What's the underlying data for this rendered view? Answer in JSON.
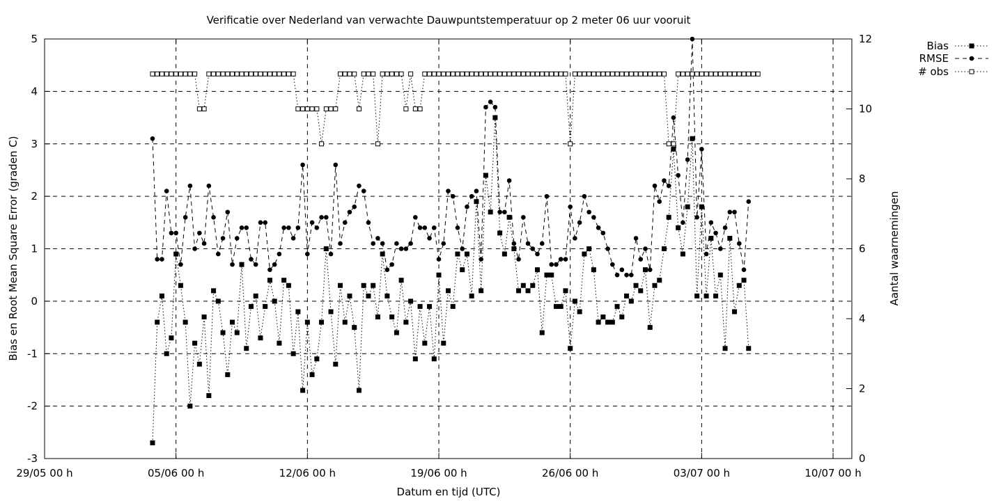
{
  "chart_data": {
    "type": "line",
    "title": "Verificatie over Nederland van verwachte Dauwpuntstemperatuur op 2 meter 06 uur vooruit",
    "xlabel": "Datum en tijd (UTC)",
    "ylabel": "Bias en Root Mean Square Error (graden C)",
    "y2label": "Aantal waarnemingen",
    "grid": true,
    "legend_position": "top-right",
    "xlim_hours": [
      0,
      1032
    ],
    "ylim": [
      -3,
      5
    ],
    "y2lim": [
      0,
      12
    ],
    "x_ticks": [
      {
        "hour": 0,
        "label": "29/05 00 h"
      },
      {
        "hour": 168,
        "label": "05/06 00 h"
      },
      {
        "hour": 336,
        "label": "12/06 00 h"
      },
      {
        "hour": 504,
        "label": "19/06 00 h"
      },
      {
        "hour": 672,
        "label": "26/06 00 h"
      },
      {
        "hour": 840,
        "label": "03/07 00 h"
      },
      {
        "hour": 1008,
        "label": "10/07 00 h"
      }
    ],
    "y_ticks": [
      "-3",
      "-2",
      "-1",
      "0",
      "1",
      "2",
      "3",
      "4",
      "5"
    ],
    "y2_ticks": [
      "0",
      "2",
      "4",
      "6",
      "8",
      "10",
      "12"
    ],
    "x_hours": [
      138,
      144,
      150,
      156,
      162,
      168,
      174,
      180,
      186,
      192,
      198,
      204,
      210,
      216,
      222,
      228,
      234,
      240,
      246,
      252,
      258,
      264,
      270,
      276,
      282,
      288,
      294,
      300,
      306,
      312,
      318,
      324,
      330,
      336,
      342,
      348,
      354,
      360,
      366,
      372,
      378,
      384,
      390,
      396,
      402,
      408,
      414,
      420,
      426,
      432,
      438,
      444,
      450,
      456,
      462,
      468,
      474,
      480,
      486,
      492,
      498,
      504,
      510,
      516,
      522,
      528,
      534,
      540,
      546,
      552,
      558,
      564,
      570,
      576,
      582,
      588,
      594,
      600,
      606,
      612,
      618,
      624,
      630,
      636,
      642,
      648,
      654,
      660,
      666,
      672,
      678,
      684,
      690,
      696,
      702,
      708,
      714,
      720,
      726,
      732,
      738,
      744,
      750,
      756,
      762,
      768,
      774,
      780,
      786,
      792,
      798,
      804,
      810,
      816,
      822,
      828,
      834,
      840,
      846,
      852,
      858,
      864,
      870,
      876,
      882,
      888,
      894,
      900,
      906,
      912,
      918,
      924
    ],
    "series": [
      {
        "name": "Bias",
        "values": [
          -2.7,
          -0.4,
          0.1,
          -1.0,
          -0.7,
          0.9,
          0.3,
          -0.4,
          -2.0,
          -0.8,
          -1.2,
          -0.3,
          -1.8,
          0.2,
          0.0,
          -0.6,
          -1.4,
          -0.4,
          -0.6,
          0.7,
          -0.9,
          -0.1,
          0.1,
          -0.7,
          -0.1,
          0.4,
          0.0,
          -0.8,
          0.4,
          0.3,
          -1.0,
          -0.2,
          -1.7,
          -0.4,
          -1.4,
          -1.1,
          -0.4,
          1.0,
          -0.2,
          -1.2,
          0.3,
          -0.4,
          0.1,
          -0.5,
          -1.7,
          0.3,
          0.1,
          0.3,
          -0.3,
          0.9,
          0.1,
          -0.3,
          -0.6,
          0.4,
          -0.4,
          0.0,
          -1.1,
          -0.1,
          -0.8,
          -0.1,
          -1.1,
          0.5,
          -0.8,
          0.2,
          -0.1,
          0.9,
          0.6,
          0.9,
          0.1,
          1.9,
          0.2,
          2.4,
          1.7,
          3.5,
          1.3,
          0.9,
          1.6,
          1.0,
          0.2,
          0.3,
          0.2,
          0.3,
          0.6,
          -0.6,
          0.5,
          0.5,
          -0.1,
          -0.1,
          0.2,
          -0.9,
          0.0,
          -0.2,
          0.9,
          1.0,
          0.6,
          -0.4,
          -0.3,
          -0.4,
          -0.4,
          -0.1,
          -0.3,
          0.1,
          0.0,
          0.3,
          0.2,
          0.6,
          -0.5,
          0.3,
          0.4,
          1.0,
          1.6,
          2.9,
          1.4,
          0.9,
          1.8,
          3.1,
          0.1,
          1.8,
          0.1,
          1.2,
          0.1,
          0.5,
          -0.9,
          1.2,
          -0.2,
          0.3,
          0.4,
          -0.9
        ]
      },
      {
        "name": "RMSE",
        "values": [
          3.1,
          0.8,
          0.8,
          2.1,
          1.3,
          1.3,
          0.7,
          1.6,
          2.2,
          1.0,
          1.3,
          1.1,
          2.2,
          1.6,
          0.9,
          1.2,
          1.7,
          0.7,
          1.2,
          1.4,
          1.4,
          0.8,
          0.7,
          1.5,
          1.5,
          0.6,
          0.7,
          0.9,
          1.4,
          1.4,
          1.2,
          1.4,
          2.6,
          0.9,
          1.5,
          1.4,
          1.6,
          1.6,
          0.9,
          2.6,
          1.1,
          1.5,
          1.7,
          1.8,
          2.2,
          2.1,
          1.5,
          1.1,
          1.2,
          1.1,
          0.6,
          0.7,
          1.1,
          1.0,
          1.0,
          1.1,
          1.6,
          1.4,
          1.4,
          1.2,
          1.4,
          0.8,
          1.1,
          2.1,
          2.0,
          1.4,
          1.0,
          1.8,
          2.0,
          2.1,
          0.8,
          3.7,
          3.8,
          3.7,
          1.7,
          1.7,
          2.3,
          1.1,
          0.8,
          1.6,
          1.1,
          1.0,
          0.9,
          1.1,
          2.0,
          0.7,
          0.7,
          0.8,
          0.8,
          1.8,
          1.2,
          1.5,
          2.0,
          1.7,
          1.6,
          1.4,
          1.3,
          1.0,
          0.7,
          0.5,
          0.6,
          0.5,
          0.5,
          1.2,
          0.8,
          1.0,
          0.6,
          2.2,
          1.9,
          2.3,
          2.2,
          3.5,
          2.4,
          1.5,
          2.7,
          5.0,
          1.6,
          2.9,
          0.9,
          1.5,
          1.3,
          1.0,
          1.4,
          1.7,
          1.7,
          1.1,
          0.6,
          1.9
        ]
      },
      {
        "name": "# obs",
        "values": [
          11,
          11,
          11,
          11,
          11,
          11,
          11,
          11,
          11,
          11,
          10,
          10,
          11,
          11,
          11,
          11,
          11,
          11,
          11,
          11,
          11,
          11,
          11,
          11,
          11,
          11,
          11,
          11,
          11,
          11,
          11,
          10,
          10,
          10,
          10,
          10,
          9,
          10,
          10,
          10,
          11,
          11,
          11,
          11,
          10,
          11,
          11,
          11,
          9,
          11,
          11,
          11,
          11,
          11,
          10,
          11,
          10,
          10,
          11,
          11,
          11,
          11,
          11,
          11,
          11,
          11,
          11,
          11,
          11,
          11,
          11,
          11,
          11,
          11,
          11,
          11,
          11,
          11,
          11,
          11,
          11,
          11,
          11,
          11,
          11,
          11,
          11,
          11,
          11,
          9,
          11,
          11,
          11,
          11,
          11,
          11,
          11,
          11,
          11,
          11,
          11,
          11,
          11,
          11,
          11,
          11,
          11,
          11,
          11,
          11,
          9,
          9,
          11,
          11,
          11,
          11,
          11,
          11,
          11,
          11,
          11,
          11,
          11,
          11,
          11,
          11,
          11,
          11,
          11,
          11
        ]
      }
    ]
  }
}
